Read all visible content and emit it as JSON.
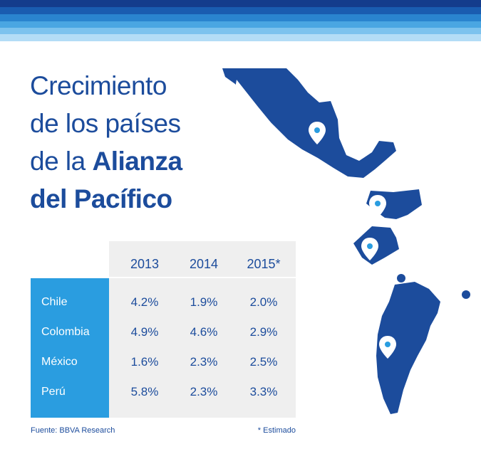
{
  "title": {
    "line1": "Crecimiento",
    "line2": "de los países",
    "line3_prefix": "de la ",
    "line3_bold": "Alianza",
    "line4": "del Pacífico"
  },
  "colors": {
    "primary": "#1c4c9c",
    "accent": "#2a9de0",
    "table_bg": "#efefef",
    "stripes": [
      "#143c8c",
      "#1a5cb0",
      "#2a84cf",
      "#4aa6e2",
      "#7cc2ee",
      "#b3dcf6"
    ]
  },
  "chart_data": {
    "type": "table",
    "columns": [
      "2013",
      "2014",
      "2015*"
    ],
    "rows": [
      {
        "name": "Chile",
        "values": [
          "4.2%",
          "1.9%",
          "2.0%"
        ]
      },
      {
        "name": "Colombia",
        "values": [
          "4.9%",
          "4.6%",
          "2.9%"
        ]
      },
      {
        "name": "México",
        "values": [
          "1.6%",
          "2.3%",
          "2.5%"
        ]
      },
      {
        "name": "Perú",
        "values": [
          "5.8%",
          "2.3%",
          "3.3%"
        ]
      }
    ]
  },
  "map": {
    "icon": "map-pin-icon",
    "countries": [
      "México",
      "Colombia",
      "Perú",
      "Chile"
    ]
  },
  "footer": {
    "source": "Fuente: BBVA Research",
    "note": "* Estimado"
  }
}
